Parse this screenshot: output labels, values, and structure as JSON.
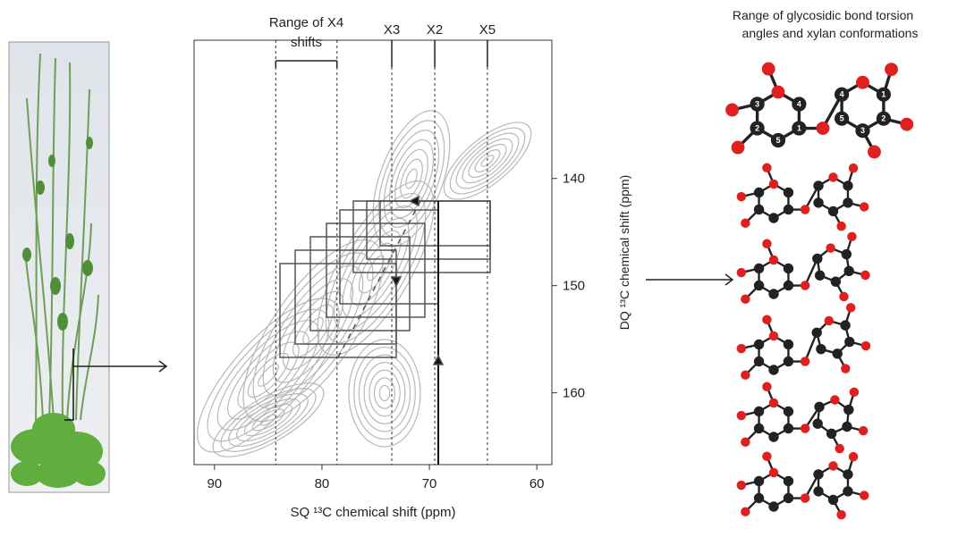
{
  "spectrum": {
    "range_label": [
      "Range of X4",
      "shifts"
    ],
    "x4_range": [
      84.3,
      78.6
    ],
    "markers": [
      {
        "label": "X3",
        "value": 73.5
      },
      {
        "label": "X2",
        "value": 69.5
      },
      {
        "label": "X5",
        "value": 64.6
      }
    ],
    "x_axis_label": "SQ ¹³C chemical shift (ppm)",
    "y_axis_label": "DQ ¹³C chemical shift (ppm)",
    "xlim": [
      91.9,
      58.6
    ],
    "xticks": [
      90,
      80,
      70,
      60
    ],
    "ylim": [
      127.1,
      166.7
    ],
    "yticks": [
      140,
      150,
      160
    ]
  },
  "conformations": {
    "title": [
      "Range of glycosidic bond torsion",
      "angles and xylan conformations"
    ],
    "atom_labels": [
      "5",
      "4",
      "3",
      "2",
      "1",
      "3",
      "2",
      "1",
      "4",
      "5"
    ]
  }
}
